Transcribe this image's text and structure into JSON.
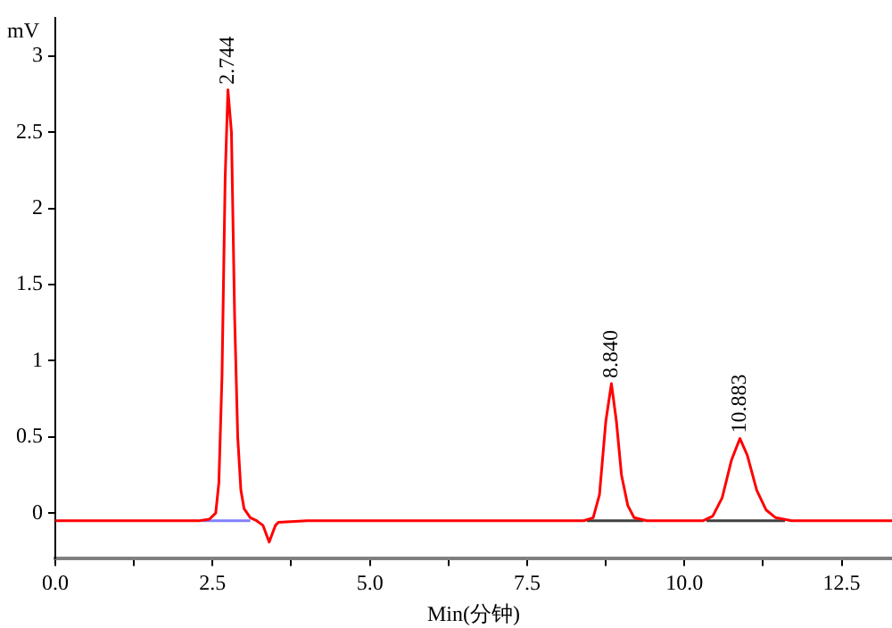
{
  "chart_data": {
    "type": "line",
    "xlabel": "Min(分钟)",
    "ylabel": "mV",
    "series": [
      {
        "color": "#ff0000",
        "x": [
          0,
          1,
          2,
          2.3,
          2.45,
          2.55,
          2.6,
          2.65,
          2.7,
          2.744,
          2.8,
          2.85,
          2.9,
          2.95,
          3.0,
          3.1,
          3.2,
          3.3,
          3.4,
          3.5,
          3.55,
          4,
          6,
          8,
          8.4,
          8.55,
          8.65,
          8.75,
          8.84,
          8.92,
          9.0,
          9.1,
          9.2,
          9.4,
          10.3,
          10.45,
          10.6,
          10.75,
          10.883,
          11.0,
          11.15,
          11.3,
          11.45,
          11.7,
          13.3
        ],
        "values": [
          -0.05,
          -0.05,
          -0.05,
          -0.05,
          -0.04,
          0.0,
          0.2,
          0.9,
          2.2,
          2.78,
          2.5,
          1.3,
          0.5,
          0.15,
          0.03,
          -0.03,
          -0.05,
          -0.08,
          -0.19,
          -0.08,
          -0.06,
          -0.05,
          -0.05,
          -0.05,
          -0.05,
          -0.03,
          0.12,
          0.6,
          0.85,
          0.6,
          0.25,
          0.05,
          -0.03,
          -0.05,
          -0.05,
          -0.02,
          0.1,
          0.35,
          0.49,
          0.38,
          0.15,
          0.02,
          -0.03,
          -0.05,
          -0.05
        ]
      },
      {
        "color": "#8080ff",
        "x": [
          2.35,
          3.1
        ],
        "values": [
          -0.05,
          -0.05
        ]
      },
      {
        "color": "#404040",
        "x": [
          8.45,
          9.35
        ],
        "values": [
          -0.05,
          -0.05
        ]
      },
      {
        "color": "#404040",
        "x": [
          10.35,
          11.6
        ],
        "values": [
          -0.05,
          -0.05
        ]
      }
    ],
    "xlim": [
      0,
      13.3
    ],
    "ylim": [
      -0.3,
      3.25
    ],
    "xticks": [
      {
        "value": 0,
        "label": "0.0"
      },
      {
        "value": 1.25,
        "label": null
      },
      {
        "value": 2.5,
        "label": "2.5"
      },
      {
        "value": 3.75,
        "label": null
      },
      {
        "value": 5,
        "label": "5.0"
      },
      {
        "value": 6.25,
        "label": null
      },
      {
        "value": 7.5,
        "label": "7.5"
      },
      {
        "value": 8.75,
        "label": null
      },
      {
        "value": 10,
        "label": "10.0"
      },
      {
        "value": 11.25,
        "label": null
      },
      {
        "value": 12.5,
        "label": "12.5"
      }
    ],
    "yticks": [
      0,
      0.5,
      1,
      1.5,
      2,
      2.5,
      3
    ],
    "annotations": [
      {
        "text": "2.744",
        "x": 2.744,
        "y": 2.78
      },
      {
        "text": "8.840",
        "x": 8.84,
        "y": 0.85
      },
      {
        "text": "10.883",
        "x": 10.883,
        "y": 0.49
      }
    ],
    "grid": false,
    "legend": false,
    "marker": "none",
    "line_style": "solid"
  }
}
